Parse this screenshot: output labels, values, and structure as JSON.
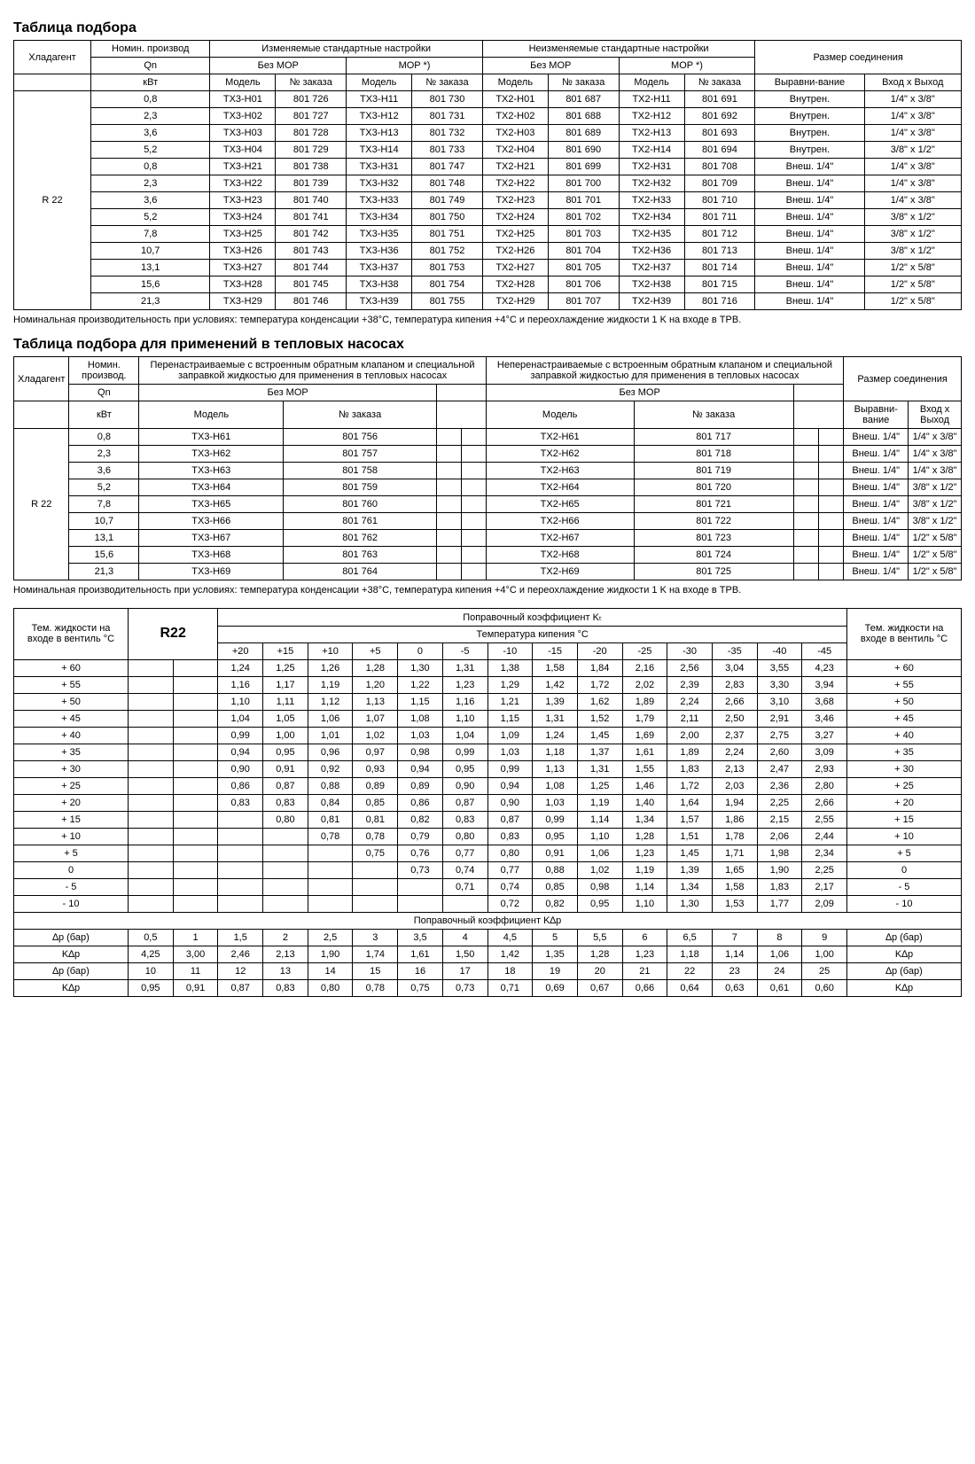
{
  "t1": {
    "title": "Таблица подбора",
    "h_refrig": "Хладагент",
    "h_nom": "Номин. производ",
    "h_qn": "Qn",
    "h_kw": "кВт",
    "h_change": "Изменяемые стандартные настройки",
    "h_nochange": "Неизменяемые стандартные настройки",
    "h_conn": "Размер соединения",
    "h_nomor": "Без MOP",
    "h_mor": "MOP *)",
    "h_model": "Модель",
    "h_order": "№ заказа",
    "h_align": "Выравни-вание",
    "h_io": "Вход х Выход",
    "refrig": "R 22",
    "rows": [
      {
        "qn": "0,8",
        "m1": "TX3-H01",
        "o1": "801 726",
        "m2": "TX3-H11",
        "o2": "801 730",
        "m3": "TX2-H01",
        "o3": "801 687",
        "m4": "TX2-H11",
        "o4": "801 691",
        "a": "Внутрен.",
        "io": "1/4\" x 3/8\""
      },
      {
        "qn": "2,3",
        "m1": "TX3-H02",
        "o1": "801 727",
        "m2": "TX3-H12",
        "o2": "801 731",
        "m3": "TX2-H02",
        "o3": "801 688",
        "m4": "TX2-H12",
        "o4": "801 692",
        "a": "Внутрен.",
        "io": "1/4\" x 3/8\""
      },
      {
        "qn": "3,6",
        "m1": "TX3-H03",
        "o1": "801 728",
        "m2": "TX3-H13",
        "o2": "801 732",
        "m3": "TX2-H03",
        "o3": "801 689",
        "m4": "TX2-H13",
        "o4": "801 693",
        "a": "Внутрен.",
        "io": "1/4\" x 3/8\""
      },
      {
        "qn": "5,2",
        "m1": "TX3-H04",
        "o1": "801 729",
        "m2": "TX3-H14",
        "o2": "801 733",
        "m3": "TX2-H04",
        "o3": "801 690",
        "m4": "TX2-H14",
        "o4": "801 694",
        "a": "Внутрен.",
        "io": "3/8\" x 1/2\""
      },
      {
        "qn": "0,8",
        "m1": "TX3-H21",
        "o1": "801 738",
        "m2": "TX3-H31",
        "o2": "801 747",
        "m3": "TX2-H21",
        "o3": "801 699",
        "m4": "TX2-H31",
        "o4": "801 708",
        "a": "Внеш. 1/4\"",
        "io": "1/4\" x 3/8\""
      },
      {
        "qn": "2,3",
        "m1": "TX3-H22",
        "o1": "801 739",
        "m2": "TX3-H32",
        "o2": "801 748",
        "m3": "TX2-H22",
        "o3": "801 700",
        "m4": "TX2-H32",
        "o4": "801 709",
        "a": "Внеш. 1/4\"",
        "io": "1/4\" x 3/8\""
      },
      {
        "qn": "3,6",
        "m1": "TX3-H23",
        "o1": "801 740",
        "m2": "TX3-H33",
        "o2": "801 749",
        "m3": "TX2-H23",
        "o3": "801 701",
        "m4": "TX2-H33",
        "o4": "801 710",
        "a": "Внеш. 1/4\"",
        "io": "1/4\" x 3/8\""
      },
      {
        "qn": "5,2",
        "m1": "TX3-H24",
        "o1": "801 741",
        "m2": "TX3-H34",
        "o2": "801 750",
        "m3": "TX2-H24",
        "o3": "801 702",
        "m4": "TX2-H34",
        "o4": "801 711",
        "a": "Внеш. 1/4\"",
        "io": "3/8\" x 1/2\""
      },
      {
        "qn": "7,8",
        "m1": "TX3-H25",
        "o1": "801 742",
        "m2": "TX3-H35",
        "o2": "801 751",
        "m3": "TX2-H25",
        "o3": "801 703",
        "m4": "TX2-H35",
        "o4": "801 712",
        "a": "Внеш. 1/4\"",
        "io": "3/8\" x 1/2\""
      },
      {
        "qn": "10,7",
        "m1": "TX3-H26",
        "o1": "801 743",
        "m2": "TX3-H36",
        "o2": "801 752",
        "m3": "TX2-H26",
        "o3": "801 704",
        "m4": "TX2-H36",
        "o4": "801 713",
        "a": "Внеш. 1/4\"",
        "io": "3/8\" x 1/2\""
      },
      {
        "qn": "13,1",
        "m1": "TX3-H27",
        "o1": "801 744",
        "m2": "TX3-H37",
        "o2": "801 753",
        "m3": "TX2-H27",
        "o3": "801 705",
        "m4": "TX2-H37",
        "o4": "801 714",
        "a": "Внеш. 1/4\"",
        "io": "1/2\" x 5/8\""
      },
      {
        "qn": "15,6",
        "m1": "TX3-H28",
        "o1": "801 745",
        "m2": "TX3-H38",
        "o2": "801 754",
        "m3": "TX2-H28",
        "o3": "801 706",
        "m4": "TX2-H38",
        "o4": "801 715",
        "a": "Внеш. 1/4\"",
        "io": "1/2\" x 5/8\""
      },
      {
        "qn": "21,3",
        "m1": "TX3-H29",
        "o1": "801 746",
        "m2": "TX3-H39",
        "o2": "801 755",
        "m3": "TX2-H29",
        "o3": "801 707",
        "m4": "TX2-H39",
        "o4": "801 716",
        "a": "Внеш. 1/4\"",
        "io": "1/2\" x 5/8\""
      }
    ],
    "note": "Номинальная производительность при условиях: температура конденсации +38°C, температура кипения +4°C и переохлаждение жидкости 1 K на входе в ТРВ."
  },
  "t2": {
    "title": "Таблица подбора для применений в тепловых насосах",
    "h_col1": "Перенастраиваемые с встроенным обратным клапаном и специальной заправкой жидкостью для применения в тепловых насосах",
    "h_col2": "Неперенастраиваемые с встроенным обратным клапаном и специальной заправкой жидкостью для применения в тепловых насосах",
    "rows": [
      {
        "qn": "0,8",
        "m1": "TX3-H61",
        "o1": "801 756",
        "m3": "TX2-H61",
        "o3": "801 717",
        "a": "Внеш. 1/4\"",
        "io": "1/4\" x 3/8\""
      },
      {
        "qn": "2,3",
        "m1": "TX3-H62",
        "o1": "801 757",
        "m3": "TX2-H62",
        "o3": "801 718",
        "a": "Внеш. 1/4\"",
        "io": "1/4\" x 3/8\""
      },
      {
        "qn": "3,6",
        "m1": "TX3-H63",
        "o1": "801 758",
        "m3": "TX2-H63",
        "o3": "801 719",
        "a": "Внеш. 1/4\"",
        "io": "1/4\" x 3/8\""
      },
      {
        "qn": "5,2",
        "m1": "TX3-H64",
        "o1": "801 759",
        "m3": "TX2-H64",
        "o3": "801 720",
        "a": "Внеш. 1/4\"",
        "io": "3/8\" x 1/2\""
      },
      {
        "qn": "7,8",
        "m1": "TX3-H65",
        "o1": "801 760",
        "m3": "TX2-H65",
        "o3": "801 721",
        "a": "Внеш. 1/4\"",
        "io": "3/8\" x 1/2\""
      },
      {
        "qn": "10,7",
        "m1": "TX3-H66",
        "o1": "801 761",
        "m3": "TX2-H66",
        "o3": "801 722",
        "a": "Внеш. 1/4\"",
        "io": "3/8\" x 1/2\""
      },
      {
        "qn": "13,1",
        "m1": "TX3-H67",
        "o1": "801 762",
        "m3": "TX2-H67",
        "o3": "801 723",
        "a": "Внеш. 1/4\"",
        "io": "1/2\" x 5/8\""
      },
      {
        "qn": "15,6",
        "m1": "TX3-H68",
        "o1": "801 763",
        "m3": "TX2-H68",
        "o3": "801 724",
        "a": "Внеш. 1/4\"",
        "io": "1/2\" x 5/8\""
      },
      {
        "qn": "21,3",
        "m1": "TX3-H69",
        "o1": "801 764",
        "m3": "TX2-H69",
        "o3": "801 725",
        "a": "Внеш. 1/4\"",
        "io": "1/2\" x 5/8\""
      }
    ]
  },
  "t3": {
    "h_liq": "Тем. жидкости на входе в вентиль °C",
    "h_r22": "R22",
    "h_kt": "Поправочный коэффициент Kₜ",
    "h_temp": "Температура кипения °C",
    "cols": [
      "+20",
      "+15",
      "+10",
      "+5",
      "0",
      "-5",
      "-10",
      "-15",
      "-20",
      "-25",
      "-30",
      "-35",
      "-40",
      "-45"
    ],
    "rows": [
      {
        "t": "+ 60",
        "v": [
          "1,24",
          "1,25",
          "1,26",
          "1,28",
          "1,30",
          "1,31",
          "1,38",
          "1,58",
          "1,84",
          "2,16",
          "2,56",
          "3,04",
          "3,55",
          "4,23"
        ]
      },
      {
        "t": "+ 55",
        "v": [
          "1,16",
          "1,17",
          "1,19",
          "1,20",
          "1,22",
          "1,23",
          "1,29",
          "1,42",
          "1,72",
          "2,02",
          "2,39",
          "2,83",
          "3,30",
          "3,94"
        ]
      },
      {
        "t": "+ 50",
        "v": [
          "1,10",
          "1,11",
          "1,12",
          "1,13",
          "1,15",
          "1,16",
          "1,21",
          "1,39",
          "1,62",
          "1,89",
          "2,24",
          "2,66",
          "3,10",
          "3,68"
        ]
      },
      {
        "t": "+ 45",
        "v": [
          "1,04",
          "1,05",
          "1,06",
          "1,07",
          "1,08",
          "1,10",
          "1,15",
          "1,31",
          "1,52",
          "1,79",
          "2,11",
          "2,50",
          "2,91",
          "3,46"
        ]
      },
      {
        "t": "+ 40",
        "v": [
          "0,99",
          "1,00",
          "1,01",
          "1,02",
          "1,03",
          "1,04",
          "1,09",
          "1,24",
          "1,45",
          "1,69",
          "2,00",
          "2,37",
          "2,75",
          "3,27"
        ]
      },
      {
        "t": "+ 35",
        "v": [
          "0,94",
          "0,95",
          "0,96",
          "0,97",
          "0,98",
          "0,99",
          "1,03",
          "1,18",
          "1,37",
          "1,61",
          "1,89",
          "2,24",
          "2,60",
          "3,09"
        ]
      },
      {
        "t": "+ 30",
        "v": [
          "0,90",
          "0,91",
          "0,92",
          "0,93",
          "0,94",
          "0,95",
          "0,99",
          "1,13",
          "1,31",
          "1,55",
          "1,83",
          "2,13",
          "2,47",
          "2,93"
        ]
      },
      {
        "t": "+ 25",
        "v": [
          "0,86",
          "0,87",
          "0,88",
          "0,89",
          "0,89",
          "0,90",
          "0,94",
          "1,08",
          "1,25",
          "1,46",
          "1,72",
          "2,03",
          "2,36",
          "2,80"
        ]
      },
      {
        "t": "+ 20",
        "v": [
          "0,83",
          "0,83",
          "0,84",
          "0,85",
          "0,86",
          "0,87",
          "0,90",
          "1,03",
          "1,19",
          "1,40",
          "1,64",
          "1,94",
          "2,25",
          "2,66"
        ]
      },
      {
        "t": "+ 15",
        "v": [
          "",
          "0,80",
          "0,81",
          "0,81",
          "0,82",
          "0,83",
          "0,87",
          "0,99",
          "1,14",
          "1,34",
          "1,57",
          "1,86",
          "2,15",
          "2,55"
        ]
      },
      {
        "t": "+ 10",
        "v": [
          "",
          "",
          "0,78",
          "0,78",
          "0,79",
          "0,80",
          "0,83",
          "0,95",
          "1,10",
          "1,28",
          "1,51",
          "1,78",
          "2,06",
          "2,44"
        ]
      },
      {
        "t": "+ 5",
        "v": [
          "",
          "",
          "",
          "0,75",
          "0,76",
          "0,77",
          "0,80",
          "0,91",
          "1,06",
          "1,23",
          "1,45",
          "1,71",
          "1,98",
          "2,34"
        ]
      },
      {
        "t": "0",
        "v": [
          "",
          "",
          "",
          "",
          "0,73",
          "0,74",
          "0,77",
          "0,88",
          "1,02",
          "1,19",
          "1,39",
          "1,65",
          "1,90",
          "2,25"
        ]
      },
      {
        "t": "- 5",
        "v": [
          "",
          "",
          "",
          "",
          "",
          "0,71",
          "0,74",
          "0,85",
          "0,98",
          "1,14",
          "1,34",
          "1,58",
          "1,83",
          "2,17"
        ]
      },
      {
        "t": "- 10",
        "v": [
          "",
          "",
          "",
          "",
          "",
          "",
          "0,72",
          "0,82",
          "0,95",
          "1,10",
          "1,30",
          "1,53",
          "1,77",
          "2,09"
        ]
      }
    ],
    "h_kdp": "Поправочный коэффициент K∆p",
    "h_dp": "∆p (бар)",
    "h_k": "K∆p",
    "dp1": [
      "0,5",
      "1",
      "1,5",
      "2",
      "2,5",
      "3",
      "3,5",
      "4",
      "4,5",
      "5",
      "5,5",
      "6",
      "6,5",
      "7",
      "8",
      "9"
    ],
    "k1": [
      "4,25",
      "3,00",
      "2,46",
      "2,13",
      "1,90",
      "1,74",
      "1,61",
      "1,50",
      "1,42",
      "1,35",
      "1,28",
      "1,23",
      "1,18",
      "1,14",
      "1,06",
      "1,00"
    ],
    "dp2": [
      "10",
      "11",
      "12",
      "13",
      "14",
      "15",
      "16",
      "17",
      "18",
      "19",
      "20",
      "21",
      "22",
      "23",
      "24",
      "25"
    ],
    "k2": [
      "0,95",
      "0,91",
      "0,87",
      "0,83",
      "0,80",
      "0,78",
      "0,75",
      "0,73",
      "0,71",
      "0,69",
      "0,67",
      "0,66",
      "0,64",
      "0,63",
      "0,61",
      "0,60"
    ]
  }
}
